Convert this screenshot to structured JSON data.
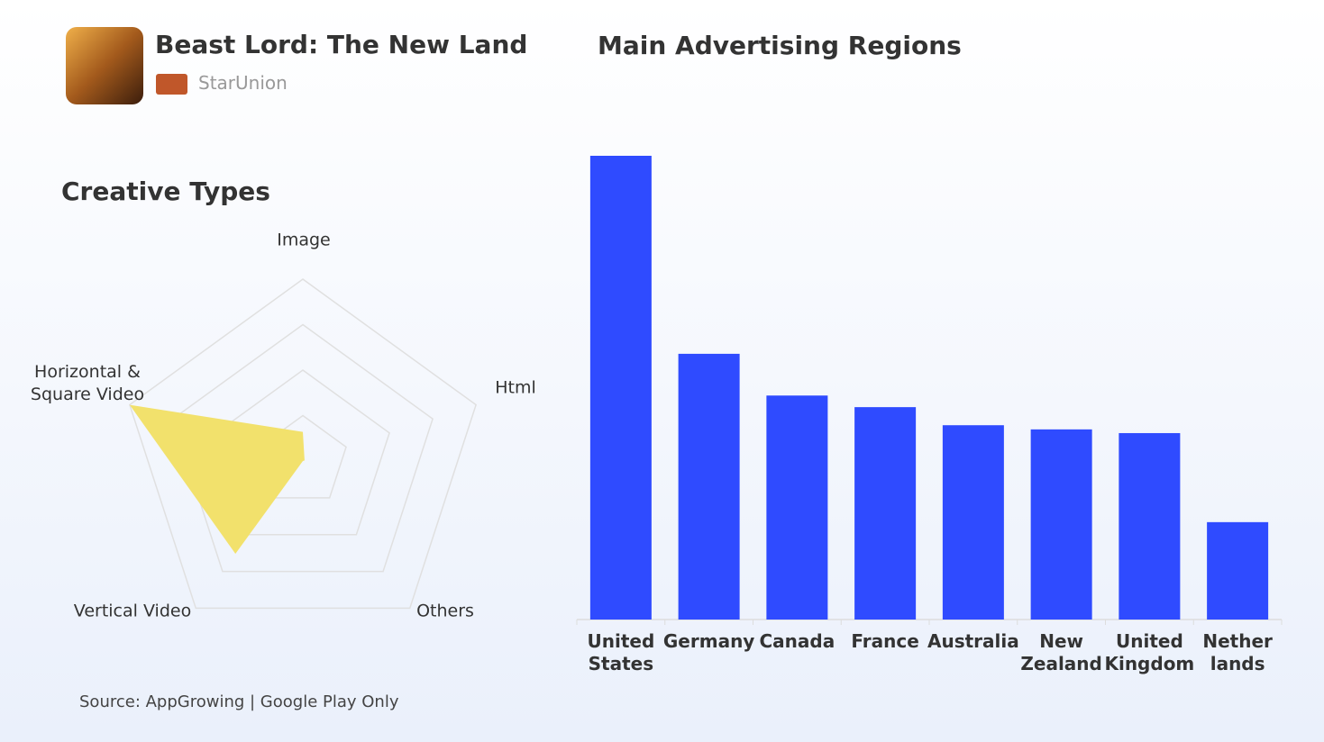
{
  "header": {
    "title": "Beast Lord: The New Land",
    "developer": "StarUnion"
  },
  "source": "Source: AppGrowing | Google Play Only",
  "chart_data": [
    {
      "type": "radar",
      "title": "Creative Types",
      "categories": [
        "Image",
        "Html",
        "Others",
        "Vertical Video",
        "Horizontal &\nSquare Video"
      ],
      "values": [
        16,
        1,
        0,
        63,
        100
      ],
      "color": "#f2e16c",
      "ylim": [
        0,
        100
      ],
      "yticks": [
        25,
        50,
        75,
        100
      ],
      "grid": true
    },
    {
      "type": "bar",
      "title": "Main Advertising Regions",
      "categories": [
        "United\nStates",
        "Germany",
        "Canada",
        "France",
        "Australia",
        "New\nZealand",
        "United\nKingdom",
        "Nether\nlands"
      ],
      "values": [
        100,
        57.3,
        48.3,
        45.8,
        41.9,
        41.0,
        40.2,
        21.0
      ],
      "color": "#2f4bff",
      "ylim": [
        0,
        100
      ]
    }
  ]
}
